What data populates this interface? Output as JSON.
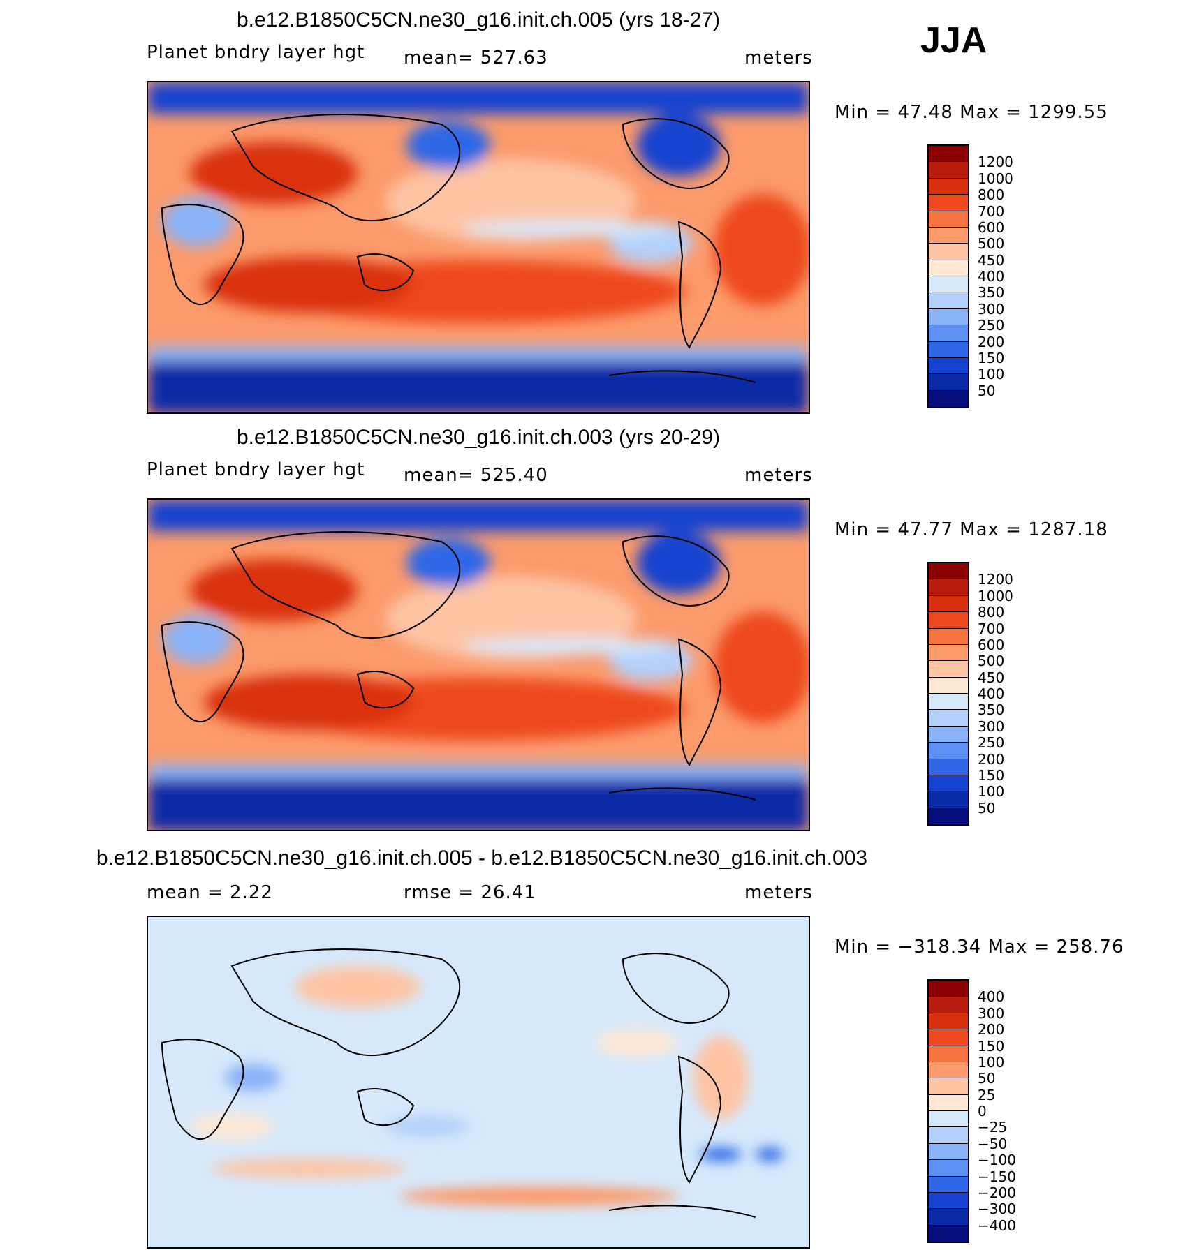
{
  "season": "JJA",
  "panels": [
    {
      "title": "b.e12.B1850C5CN.ne30_g16.init.ch.005 (yrs 18-27)",
      "left_label": "Planet bndry layer hgt",
      "mid_label": "mean= 527.63",
      "units": "meters",
      "minmax": "Min =   47.48 Max = 1299.55",
      "colorbar": {
        "labels": [
          "1200",
          "1000",
          "800",
          "700",
          "600",
          "500",
          "450",
          "400",
          "350",
          "300",
          "250",
          "200",
          "150",
          "100",
          "50"
        ],
        "colors": [
          "#8b0000",
          "#b71c0c",
          "#d9300e",
          "#ee4a1e",
          "#f6743f",
          "#fb9a6b",
          "#fdc4a4",
          "#fde8d6",
          "#d6e9fb",
          "#b4d0fa",
          "#8ab2f7",
          "#5e8ff2",
          "#2f68e6",
          "#1542cf",
          "#0b2aa6",
          "#050d7a"
        ],
        "ramp": "sequential"
      }
    },
    {
      "title": "b.e12.B1850C5CN.ne30_g16.init.ch.003 (yrs 20-29)",
      "left_label": "Planet bndry layer hgt",
      "mid_label": "mean= 525.40",
      "units": "meters",
      "minmax": "Min =   47.77 Max = 1287.18",
      "colorbar": {
        "labels": [
          "1200",
          "1000",
          "800",
          "700",
          "600",
          "500",
          "450",
          "400",
          "350",
          "300",
          "250",
          "200",
          "150",
          "100",
          "50"
        ],
        "colors": [
          "#8b0000",
          "#b71c0c",
          "#d9300e",
          "#ee4a1e",
          "#f6743f",
          "#fb9a6b",
          "#fdc4a4",
          "#fde8d6",
          "#d6e9fb",
          "#b4d0fa",
          "#8ab2f7",
          "#5e8ff2",
          "#2f68e6",
          "#1542cf",
          "#0b2aa6",
          "#050d7a"
        ],
        "ramp": "sequential"
      }
    },
    {
      "title": "b.e12.B1850C5CN.ne30_g16.init.ch.005 - b.e12.B1850C5CN.ne30_g16.init.ch.003",
      "left_label": "mean =    2.22",
      "mid_label": "rmse =   26.41",
      "units": "meters",
      "minmax": "Min = −318.34 Max =  258.76",
      "colorbar": {
        "labels": [
          "400",
          "300",
          "200",
          "150",
          "100",
          "50",
          "25",
          "0",
          "−25",
          "−50",
          "−100",
          "−150",
          "−200",
          "−300",
          "−400"
        ],
        "colors": [
          "#8b0000",
          "#b71c0c",
          "#d9300e",
          "#ee4a1e",
          "#f6743f",
          "#fb9a6b",
          "#fdc4a4",
          "#fde8d6",
          "#d6e9fb",
          "#b4d0fa",
          "#8ab2f7",
          "#5e8ff2",
          "#2f68e6",
          "#1542cf",
          "#0b2aa6",
          "#050d7a"
        ],
        "ramp": "difference"
      }
    }
  ]
}
